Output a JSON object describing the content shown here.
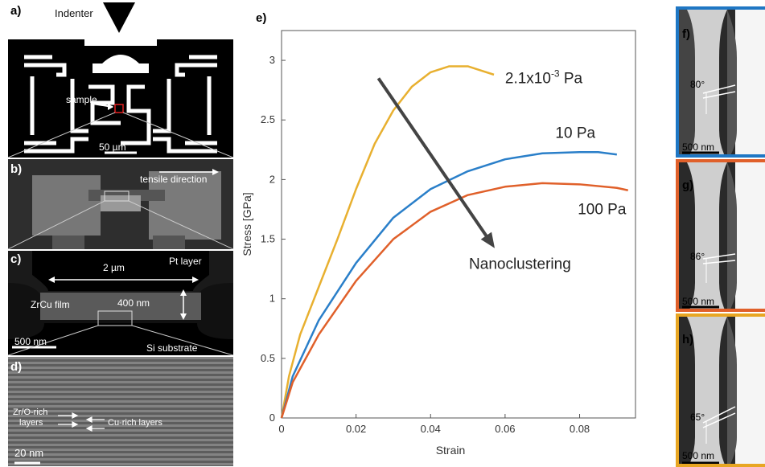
{
  "panels": {
    "a": {
      "tag": "a)",
      "indenter": "Indenter",
      "sample": "sample",
      "scale": "50 µm"
    },
    "b": {
      "tag": "b)",
      "tensile": "tensile direction"
    },
    "c": {
      "tag": "c)",
      "width": "2 µm",
      "pt_layer": "Pt layer",
      "film": "ZrCu film",
      "thickness": "400 nm",
      "scale": "500 nm",
      "substrate": "Si substrate"
    },
    "d": {
      "tag": "d)",
      "zr_layers_line1": "Zr/O-rich",
      "zr_layers_line2": "layers",
      "cu_layers": "Cu-rich layers",
      "scale": "20 nm"
    },
    "e": {
      "tag": "e)"
    },
    "f": {
      "tag": "f)",
      "angle": "80°",
      "scale": "500 nm",
      "border_color": "#1f77c4"
    },
    "g": {
      "tag": "g)",
      "angle": "86°",
      "scale": "500 nm",
      "border_color": "#e0602a"
    },
    "h": {
      "tag": "h)",
      "angle": "65°",
      "scale": "500 nm",
      "border_color": "#e8a623"
    }
  },
  "chart_data": {
    "type": "line",
    "xlabel": "Strain",
    "ylabel": "Stress [GPa]",
    "xlim": [
      0,
      0.095
    ],
    "ylim": [
      0,
      3.25
    ],
    "xticks": [
      0,
      0.02,
      0.04,
      0.06,
      0.08
    ],
    "xtick_labels": [
      "0",
      "0.02",
      "0.04",
      "0.06",
      "0.08"
    ],
    "yticks": [
      0,
      0.5,
      1,
      1.5,
      2,
      2.5,
      3
    ],
    "ytick_labels": [
      "0",
      "0.5",
      "1",
      "1.5",
      "2",
      "2.5",
      "3"
    ],
    "annotation": "Nanoclustering",
    "series": [
      {
        "name": "2.1x10⁻³ Pa",
        "label_main": "2.1x10",
        "label_sup": "-3",
        "label_tail": " Pa",
        "color": "#e8b030",
        "x": [
          0,
          0.002,
          0.005,
          0.01,
          0.015,
          0.02,
          0.025,
          0.03,
          0.035,
          0.04,
          0.045,
          0.05,
          0.053,
          0.057
        ],
        "y": [
          0,
          0.35,
          0.7,
          1.1,
          1.5,
          1.92,
          2.3,
          2.58,
          2.78,
          2.9,
          2.95,
          2.95,
          2.92,
          2.88
        ]
      },
      {
        "name": "10 Pa",
        "label": "10 Pa",
        "color": "#2a7fc9",
        "x": [
          0,
          0.003,
          0.01,
          0.02,
          0.03,
          0.04,
          0.05,
          0.06,
          0.07,
          0.08,
          0.085,
          0.09
        ],
        "y": [
          0,
          0.35,
          0.82,
          1.3,
          1.68,
          1.92,
          2.07,
          2.17,
          2.22,
          2.23,
          2.23,
          2.21
        ]
      },
      {
        "name": "100 Pa",
        "label": "100 Pa",
        "color": "#e0602a",
        "x": [
          0,
          0.003,
          0.01,
          0.02,
          0.03,
          0.04,
          0.05,
          0.06,
          0.07,
          0.08,
          0.09,
          0.093
        ],
        "y": [
          0,
          0.3,
          0.7,
          1.15,
          1.5,
          1.73,
          1.87,
          1.94,
          1.97,
          1.96,
          1.93,
          1.91
        ]
      }
    ]
  }
}
